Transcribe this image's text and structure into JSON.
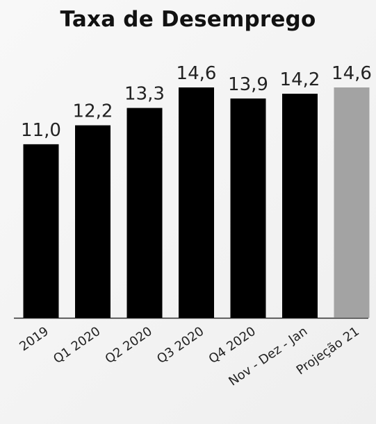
{
  "chart_data": {
    "type": "bar",
    "title": "Taxa de Desemprego",
    "categories": [
      "2019",
      "Q1 2020",
      "Q2 2020",
      "Q3 2020",
      "Q4 2020",
      "Nov - Dez - Jan",
      "Projeção 21"
    ],
    "values": [
      11.0,
      12.2,
      13.3,
      14.6,
      13.9,
      14.2,
      14.6
    ],
    "value_labels": [
      "11,0",
      "12,2",
      "13,3",
      "14,6",
      "13,9",
      "14,2",
      "14,6"
    ],
    "bar_colors": [
      "#000000",
      "#000000",
      "#000000",
      "#000000",
      "#000000",
      "#000000",
      "#a3a3a3"
    ],
    "baseline_color": "#2b2b2b",
    "xlabel": "",
    "ylabel": "",
    "ylim": [
      0,
      14.6
    ],
    "grid": false,
    "legend": "none"
  }
}
